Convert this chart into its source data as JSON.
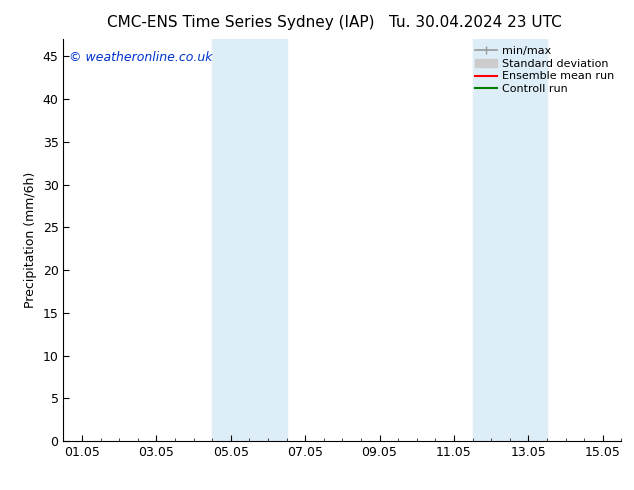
{
  "title_left": "CMC-ENS Time Series Sydney (IAP)",
  "title_right": "Tu. 30.04.2024 23 UTC",
  "ylabel": "Precipitation (mm/6h)",
  "background_color": "#ffffff",
  "plot_bg_color": "#ffffff",
  "ylim": [
    0,
    47
  ],
  "yticks": [
    0,
    5,
    10,
    15,
    20,
    25,
    30,
    35,
    40,
    45
  ],
  "xtick_labels": [
    "01.05",
    "03.05",
    "05.05",
    "07.05",
    "09.05",
    "11.05",
    "13.05",
    "15.05"
  ],
  "xtick_positions": [
    0,
    2,
    4,
    6,
    8,
    10,
    12,
    14
  ],
  "xlim": [
    -0.5,
    14.5
  ],
  "shaded_regions": [
    {
      "xmin": 3.5,
      "xmax": 5.5,
      "color": "#ddeef9"
    },
    {
      "xmin": 10.5,
      "xmax": 12.5,
      "color": "#ddeef9"
    }
  ],
  "watermark_text": "© weatheronline.co.uk",
  "watermark_color": "#0033cc",
  "legend_items": [
    {
      "label": "min/max",
      "color": "#999999",
      "lw": 1.2
    },
    {
      "label": "Standard deviation",
      "color": "#cccccc",
      "lw": 6
    },
    {
      "label": "Ensemble mean run",
      "color": "#ff0000",
      "lw": 1.5
    },
    {
      "label": "Controll run",
      "color": "#008000",
      "lw": 1.5
    }
  ],
  "title_fontsize": 11,
  "axis_fontsize": 9,
  "tick_fontsize": 9,
  "watermark_fontsize": 9,
  "legend_fontsize": 8
}
